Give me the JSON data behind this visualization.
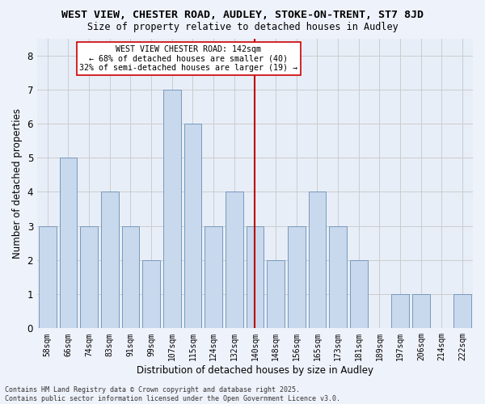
{
  "title_line1": "WEST VIEW, CHESTER ROAD, AUDLEY, STOKE-ON-TRENT, ST7 8JD",
  "title_line2": "Size of property relative to detached houses in Audley",
  "xlabel": "Distribution of detached houses by size in Audley",
  "ylabel": "Number of detached properties",
  "categories": [
    "58sqm",
    "66sqm",
    "74sqm",
    "83sqm",
    "91sqm",
    "99sqm",
    "107sqm",
    "115sqm",
    "124sqm",
    "132sqm",
    "140sqm",
    "148sqm",
    "156sqm",
    "165sqm",
    "173sqm",
    "181sqm",
    "189sqm",
    "197sqm",
    "206sqm",
    "214sqm",
    "222sqm"
  ],
  "values": [
    3,
    5,
    3,
    4,
    3,
    2,
    7,
    6,
    3,
    4,
    3,
    2,
    3,
    4,
    3,
    2,
    0,
    1,
    1,
    0,
    1
  ],
  "bar_color": "#c8d8ed",
  "bar_edge_color": "#7799bb",
  "grid_color": "#cccccc",
  "background_color": "#e8eef8",
  "fig_background": "#eef2fa",
  "vline_x_idx": 10,
  "vline_color": "#bb0000",
  "annotation_text": "WEST VIEW CHESTER ROAD: 142sqm\n← 68% of detached houses are smaller (40)\n32% of semi-detached houses are larger (19) →",
  "annotation_box_color": "#ffffff",
  "annotation_box_edge": "#cc0000",
  "footer_text": "Contains HM Land Registry data © Crown copyright and database right 2025.\nContains public sector information licensed under the Open Government Licence v3.0.",
  "ylim": [
    0,
    8.5
  ],
  "yticks": [
    0,
    1,
    2,
    3,
    4,
    5,
    6,
    7,
    8
  ]
}
